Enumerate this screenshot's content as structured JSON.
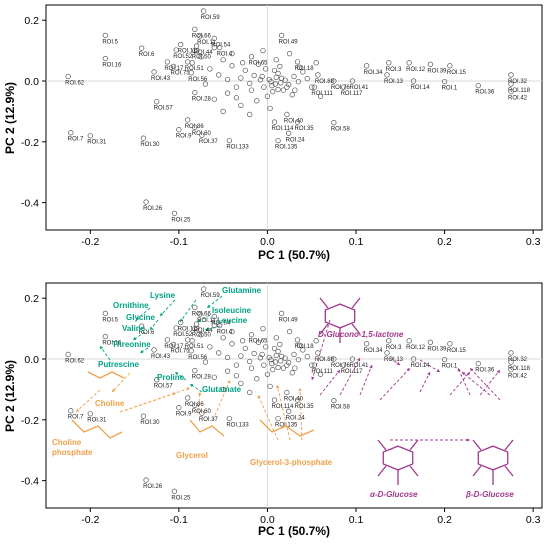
{
  "colors": {
    "amino": "#00a383",
    "choline": "#f0a04b",
    "sugar": "#a0378d",
    "point": "#555555",
    "axis": "#000000"
  },
  "chart_data": {
    "type": "scatter",
    "xlabel": "PC 1 (50.7%)",
    "ylabel": "PC 2 (12.9%)",
    "xlim": [
      -0.25,
      0.31
    ],
    "ylim": [
      -0.49,
      0.25
    ],
    "xticks": [
      "-0.2",
      "-0.1",
      "0.0",
      "0.1",
      "0.2",
      "0.3"
    ],
    "yticks": [
      "0.2",
      "0.0",
      "-0.2",
      "-0.4"
    ],
    "xtick_values": [
      -0.2,
      -0.1,
      0.0,
      0.1,
      0.2,
      0.3
    ],
    "ytick_values": [
      0.2,
      0.0,
      -0.2,
      -0.4
    ],
    "zero_lines": true,
    "labeled_points": [
      {
        "label": "ROI.59",
        "x": -0.072,
        "y": 0.23
      },
      {
        "label": "ROI.5",
        "x": -0.183,
        "y": 0.15
      },
      {
        "label": "ROI.6",
        "x": -0.142,
        "y": 0.108
      },
      {
        "label": "ROI.16",
        "x": -0.183,
        "y": 0.074
      },
      {
        "label": "ROI.62",
        "x": -0.225,
        "y": 0.015
      },
      {
        "label": "ROI.66",
        "x": -0.082,
        "y": 0.17
      },
      {
        "label": "ROI.11",
        "x": -0.076,
        "y": 0.148
      },
      {
        "label": "ROI.54",
        "x": -0.06,
        "y": 0.14
      },
      {
        "label": "ROI.119",
        "x": -0.098,
        "y": 0.12
      },
      {
        "label": "ROI.44",
        "x": -0.08,
        "y": 0.115
      },
      {
        "label": "ROI.4",
        "x": -0.054,
        "y": 0.11
      },
      {
        "label": "ROI.52",
        "x": -0.103,
        "y": 0.102
      },
      {
        "label": "ROI.50",
        "x": -0.082,
        "y": 0.1
      },
      {
        "label": "ROI.17",
        "x": -0.113,
        "y": 0.063
      },
      {
        "label": "ROI.51",
        "x": -0.09,
        "y": 0.063
      },
      {
        "label": "ROI.75",
        "x": -0.106,
        "y": 0.048
      },
      {
        "label": "ROI.43",
        "x": -0.128,
        "y": 0.03
      },
      {
        "label": "ROI.56",
        "x": -0.086,
        "y": 0.027
      },
      {
        "label": "ROI.65",
        "x": -0.018,
        "y": 0.08
      },
      {
        "label": "ROI.49",
        "x": 0.016,
        "y": 0.15
      },
      {
        "label": "ROI.18",
        "x": 0.034,
        "y": 0.063
      },
      {
        "label": "ROI.57",
        "x": -0.125,
        "y": -0.068
      },
      {
        "label": "ROI.28",
        "x": -0.082,
        "y": -0.038
      },
      {
        "label": "ROI.86",
        "x": -0.09,
        "y": -0.128
      },
      {
        "label": "ROI.60",
        "x": -0.082,
        "y": -0.152
      },
      {
        "label": "ROI.9",
        "x": -0.1,
        "y": -0.16
      },
      {
        "label": "ROI.37",
        "x": -0.074,
        "y": -0.178
      },
      {
        "label": "ROI.133",
        "x": -0.043,
        "y": -0.196
      },
      {
        "label": "ROI.135",
        "x": 0.012,
        "y": -0.196
      },
      {
        "label": "ROI.7",
        "x": -0.222,
        "y": -0.17
      },
      {
        "label": "ROI.31",
        "x": -0.2,
        "y": -0.18
      },
      {
        "label": "ROI.30",
        "x": -0.14,
        "y": -0.188
      },
      {
        "label": "ROI.26",
        "x": -0.137,
        "y": -0.398
      },
      {
        "label": "ROI.25",
        "x": -0.105,
        "y": -0.435
      },
      {
        "label": "ROI.40",
        "x": 0.022,
        "y": -0.11
      },
      {
        "label": "ROI.114",
        "x": 0.008,
        "y": -0.135
      },
      {
        "label": "ROI.35",
        "x": 0.034,
        "y": -0.135
      },
      {
        "label": "ROI.24",
        "x": 0.024,
        "y": -0.172
      },
      {
        "label": "ROI.58",
        "x": 0.075,
        "y": -0.137
      },
      {
        "label": "ROI.88",
        "x": 0.057,
        "y": 0.02
      },
      {
        "label": "ROI.76",
        "x": 0.075,
        "y": 0.0
      },
      {
        "label": "ROI.111",
        "x": 0.053,
        "y": -0.02
      },
      {
        "label": "ROI.117",
        "x": 0.086,
        "y": -0.02
      },
      {
        "label": "ROI.41",
        "x": 0.096,
        "y": 0.0
      },
      {
        "label": "ROI.34",
        "x": 0.112,
        "y": 0.05
      },
      {
        "label": "ROI.3",
        "x": 0.137,
        "y": 0.06
      },
      {
        "label": "ROI.13",
        "x": 0.135,
        "y": 0.02
      },
      {
        "label": "ROI.12",
        "x": 0.16,
        "y": 0.06
      },
      {
        "label": "ROI.14",
        "x": 0.165,
        "y": 0.0
      },
      {
        "label": "ROI.39",
        "x": 0.184,
        "y": 0.055
      },
      {
        "label": "ROI.15",
        "x": 0.206,
        "y": 0.05
      },
      {
        "label": "ROI.1",
        "x": 0.2,
        "y": -0.002
      },
      {
        "label": "ROI.36",
        "x": 0.238,
        "y": -0.015
      },
      {
        "label": "ROI.32",
        "x": 0.275,
        "y": 0.02
      },
      {
        "label": "ROI.118",
        "x": 0.275,
        "y": -0.01
      },
      {
        "label": "ROI.42",
        "x": 0.275,
        "y": -0.035
      }
    ],
    "cluster_points": [
      [
        0.002,
        0.005
      ],
      [
        0.01,
        0.012
      ],
      [
        0.005,
        -0.015
      ],
      [
        -0.008,
        0.004
      ],
      [
        0.015,
        -0.006
      ],
      [
        0.012,
        0.025
      ],
      [
        -0.004,
        -0.02
      ],
      [
        0.02,
        0.003
      ],
      [
        0.008,
        0.035
      ],
      [
        -0.015,
        0.018
      ],
      [
        0.024,
        -0.012
      ],
      [
        -0.002,
        0.04
      ],
      [
        0.006,
        -0.035
      ],
      [
        0.03,
        0.015
      ],
      [
        -0.02,
        -0.008
      ],
      [
        0.014,
        0.048
      ],
      [
        0.018,
        -0.03
      ],
      [
        -0.01,
        0.055
      ],
      [
        -0.025,
        0.035
      ],
      [
        0.035,
        -0.002
      ],
      [
        -0.03,
        0.01
      ],
      [
        0.04,
        0.03
      ],
      [
        0.0,
        -0.05
      ],
      [
        -0.035,
        -0.02
      ],
      [
        0.028,
        -0.045
      ],
      [
        -0.04,
        0.05
      ],
      [
        0.045,
        0.008
      ],
      [
        -0.045,
        -0.04
      ],
      [
        -0.012,
        -0.065
      ],
      [
        0.036,
        0.045
      ],
      [
        -0.05,
        0.07
      ],
      [
        0.01,
        0.07
      ],
      [
        -0.055,
        0.02
      ],
      [
        0.05,
        -0.02
      ],
      [
        -0.06,
        -0.06
      ],
      [
        -0.03,
        -0.08
      ],
      [
        0.025,
        0.09
      ],
      [
        -0.065,
        0.04
      ],
      [
        -0.07,
        -0.01
      ],
      [
        -0.04,
        0.09
      ],
      [
        -0.05,
        -0.1
      ],
      [
        -0.02,
        -0.11
      ],
      [
        -0.075,
        0.08
      ],
      [
        0.003,
        -0.09
      ],
      [
        -0.005,
        0.1
      ],
      [
        -0.085,
        0.06
      ],
      [
        -0.06,
        0.11
      ],
      [
        0.055,
        0.06
      ],
      [
        0.06,
        -0.05
      ],
      [
        0.004,
        -0.002
      ],
      [
        0.009,
        -0.01
      ],
      [
        0.016,
        0.009
      ],
      [
        -0.006,
        0.015
      ],
      [
        0.022,
        -0.02
      ],
      [
        0.012,
        -0.028
      ],
      [
        -0.018,
        -0.03
      ],
      [
        -0.028,
        0.06
      ],
      [
        0.031,
        -0.03
      ],
      [
        -0.045,
        0.005
      ],
      [
        -0.035,
        -0.055
      ]
    ],
    "annotations": [
      {
        "text": "Lysine",
        "group": "amino"
      },
      {
        "text": "Glutamine",
        "group": "amino"
      },
      {
        "text": "Ornithine",
        "group": "amino"
      },
      {
        "text": "Isoleucine",
        "group": "amino"
      },
      {
        "text": "Glycine",
        "group": "amino"
      },
      {
        "text": "Leucine",
        "group": "amino"
      },
      {
        "text": "Valine",
        "group": "amino"
      },
      {
        "text": "Threonine",
        "group": "amino"
      },
      {
        "text": "Putrescine",
        "group": "amino"
      },
      {
        "text": "Proline",
        "group": "amino"
      },
      {
        "text": "Glutamate",
        "group": "amino"
      },
      {
        "text": "Choline",
        "group": "choline"
      },
      {
        "text": "Choline",
        "group": "choline"
      },
      {
        "text": "phosphate",
        "group": "choline"
      },
      {
        "text": "Glycerol",
        "group": "choline"
      },
      {
        "text": "Glycerol-3-phosphate",
        "group": "choline"
      },
      {
        "text": "D-Glucono-1,5-lactone",
        "group": "sugar"
      },
      {
        "text": "α-D-Glucose",
        "group": "sugar"
      },
      {
        "text": "β-D-Glucose",
        "group": "sugar"
      }
    ]
  },
  "panels": [
    {
      "id": "top",
      "annotated": false
    },
    {
      "id": "bottom",
      "annotated": true
    }
  ]
}
